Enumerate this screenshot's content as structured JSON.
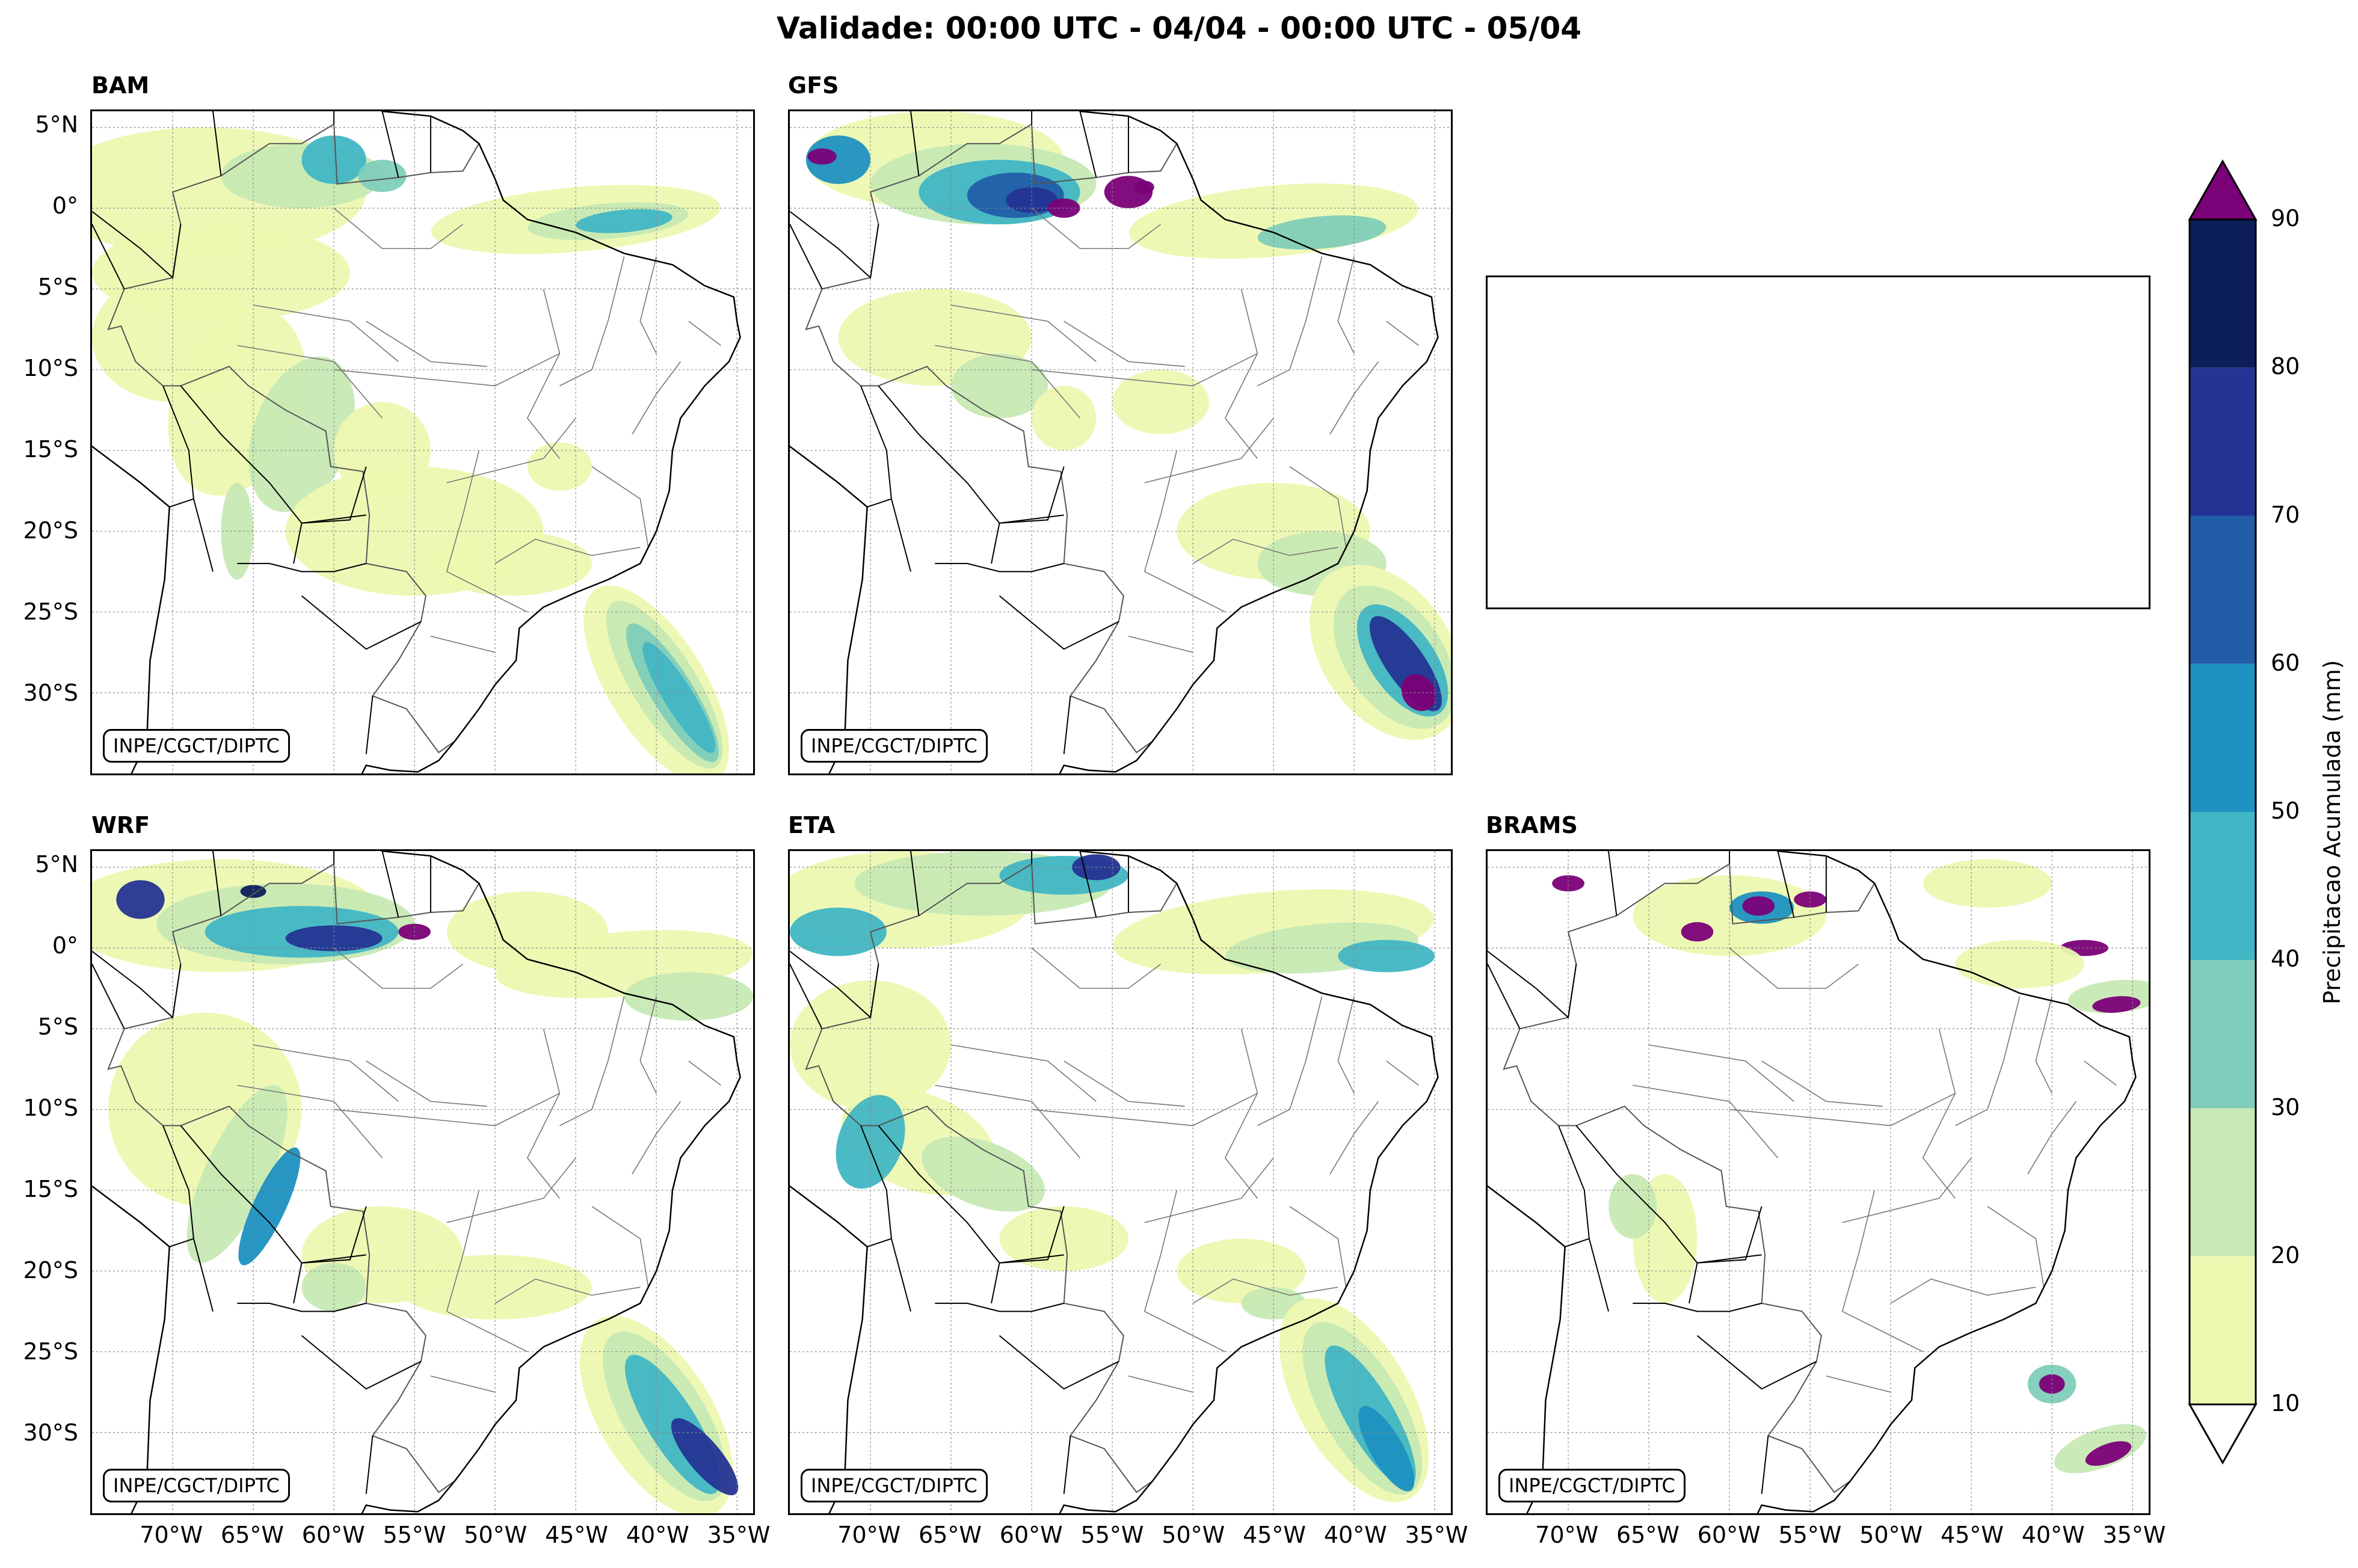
{
  "title": "Validade: 00:00 UTC - 04/04 - 00:00 UTC - 05/04",
  "panels": [
    {
      "id": "bam",
      "label": "BAM",
      "credit": "INPE/CGCT/DIPTC"
    },
    {
      "id": "gfs",
      "label": "GFS",
      "credit": "INPE/CGCT/DIPTC"
    },
    {
      "id": "wrf",
      "label": "WRF",
      "credit": "INPE/CGCT/DIPTC"
    },
    {
      "id": "eta",
      "label": "ETA",
      "credit": "INPE/CGCT/DIPTC"
    },
    {
      "id": "brams",
      "label": "BRAMS",
      "credit": "INPE/CGCT/DIPTC"
    }
  ],
  "lat_ticks": [
    "5°N",
    "0°",
    "5°S",
    "10°S",
    "15°S",
    "20°S",
    "25°S",
    "30°S"
  ],
  "lon_ticks": [
    "70°W",
    "65°W",
    "60°W",
    "55°W",
    "50°W",
    "45°W",
    "40°W",
    "35°W"
  ],
  "colorbar": {
    "label": "Precipitacao Acumulada (mm)",
    "ticks": [
      "10",
      "20",
      "30",
      "40",
      "50",
      "60",
      "70",
      "80",
      "90"
    ],
    "colors": [
      "#edf8b1",
      "#c7e9b4",
      "#7fcdbb",
      "#41b6c4",
      "#1d91c0",
      "#225ea8",
      "#253494",
      "#0c1f5a"
    ],
    "over_color": "#7a0177",
    "under_color": "#ffffff"
  },
  "chart_data": {
    "type": "map",
    "title": "Validade: 00:00 UTC - 04/04 - 00:00 UTC - 05/04",
    "variable": "Precipitacao Acumulada (mm)",
    "levels": [
      10,
      20,
      30,
      40,
      50,
      60,
      70,
      80,
      90
    ],
    "extent": {
      "lon": [
        -75,
        -34
      ],
      "lat": [
        -35,
        6
      ]
    },
    "models": [
      "BAM",
      "GFS",
      "WRF",
      "ETA",
      "BRAMS"
    ]
  }
}
